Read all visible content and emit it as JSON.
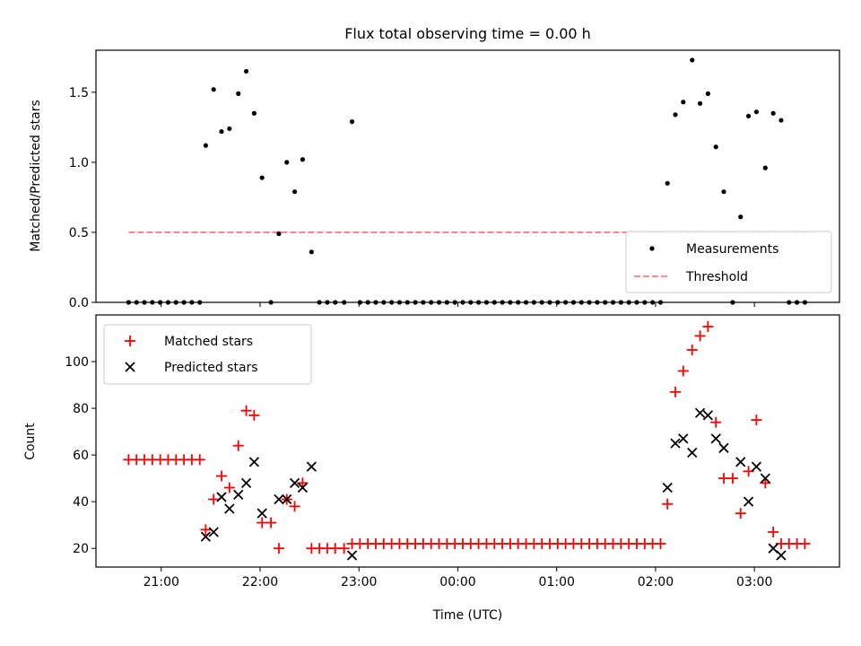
{
  "chart_data": [
    {
      "type": "scatter",
      "title": "Flux total observing time = 0.00 h",
      "xlabel": "",
      "ylabel": "Matched/Predicted stars",
      "ylim": [
        0,
        1.8
      ],
      "yticks": [
        0.0,
        0.5,
        1.0,
        1.5
      ],
      "ytick_labels": [
        "0.0",
        "0.5",
        "1.0",
        "1.5"
      ],
      "xrange_hours": [
        20.34,
        27.86
      ],
      "xticks_hours": [
        21,
        22,
        23,
        24,
        25,
        26,
        27
      ],
      "grid": false,
      "legend_position": "lower-right",
      "threshold": {
        "name": "Threshold",
        "value": 0.5,
        "x_from": 20.67,
        "x_to": 27.67,
        "color": "#ff7f7f"
      },
      "series": [
        {
          "name": "Measurements",
          "marker": "dot",
          "color": "#000000",
          "points": [
            [
              20.67,
              0
            ],
            [
              20.75,
              0
            ],
            [
              20.83,
              0
            ],
            [
              20.91,
              0
            ],
            [
              20.99,
              0
            ],
            [
              21.07,
              0
            ],
            [
              21.15,
              0
            ],
            [
              21.23,
              0
            ],
            [
              21.31,
              0
            ],
            [
              21.39,
              0
            ],
            [
              21.45,
              1.12
            ],
            [
              21.53,
              1.52
            ],
            [
              21.61,
              1.22
            ],
            [
              21.69,
              1.24
            ],
            [
              21.78,
              1.49
            ],
            [
              21.86,
              1.65
            ],
            [
              21.94,
              1.35
            ],
            [
              22.02,
              0.89
            ],
            [
              22.11,
              0
            ],
            [
              22.19,
              0.49
            ],
            [
              22.27,
              1.0
            ],
            [
              22.35,
              0.79
            ],
            [
              22.43,
              1.02
            ],
            [
              22.52,
              0.36
            ],
            [
              22.6,
              0
            ],
            [
              22.68,
              0
            ],
            [
              22.76,
              0
            ],
            [
              22.85,
              0
            ],
            [
              22.93,
              1.29
            ],
            [
              23.01,
              0
            ],
            [
              23.09,
              0
            ],
            [
              23.17,
              0
            ],
            [
              23.25,
              0
            ],
            [
              23.33,
              0
            ],
            [
              23.41,
              0
            ],
            [
              23.49,
              0
            ],
            [
              23.57,
              0
            ],
            [
              23.65,
              0
            ],
            [
              23.73,
              0
            ],
            [
              23.81,
              0
            ],
            [
              23.89,
              0
            ],
            [
              23.97,
              0
            ],
            [
              24.05,
              0
            ],
            [
              24.13,
              0
            ],
            [
              24.21,
              0
            ],
            [
              24.29,
              0
            ],
            [
              24.37,
              0
            ],
            [
              24.45,
              0
            ],
            [
              24.53,
              0
            ],
            [
              24.61,
              0
            ],
            [
              24.69,
              0
            ],
            [
              24.77,
              0
            ],
            [
              24.85,
              0
            ],
            [
              24.93,
              0
            ],
            [
              25.01,
              0
            ],
            [
              25.09,
              0
            ],
            [
              25.17,
              0
            ],
            [
              25.25,
              0
            ],
            [
              25.33,
              0
            ],
            [
              25.41,
              0
            ],
            [
              25.49,
              0
            ],
            [
              25.57,
              0
            ],
            [
              25.65,
              0
            ],
            [
              25.73,
              0
            ],
            [
              25.81,
              0
            ],
            [
              25.89,
              0
            ],
            [
              25.97,
              0
            ],
            [
              26.05,
              0
            ],
            [
              26.12,
              0.85
            ],
            [
              26.2,
              1.34
            ],
            [
              26.28,
              1.43
            ],
            [
              26.37,
              1.73
            ],
            [
              26.45,
              1.42
            ],
            [
              26.53,
              1.49
            ],
            [
              26.61,
              1.11
            ],
            [
              26.69,
              0.79
            ],
            [
              26.78,
              0
            ],
            [
              26.86,
              0.61
            ],
            [
              26.94,
              1.33
            ],
            [
              27.02,
              1.36
            ],
            [
              27.11,
              0.96
            ],
            [
              27.19,
              1.35
            ],
            [
              27.27,
              1.3
            ],
            [
              27.35,
              0
            ],
            [
              27.43,
              0
            ],
            [
              27.51,
              0
            ]
          ]
        }
      ]
    },
    {
      "type": "scatter",
      "title": "",
      "xlabel": "Time (UTC)",
      "ylabel": "Count",
      "ylim": [
        12,
        120
      ],
      "yticks": [
        20,
        40,
        60,
        80,
        100
      ],
      "ytick_labels": [
        "20",
        "40",
        "60",
        "80",
        "100"
      ],
      "xrange_hours": [
        20.34,
        27.86
      ],
      "xticks_hours": [
        21,
        22,
        23,
        24,
        25,
        26,
        27
      ],
      "xtick_labels": [
        "21:00",
        "22:00",
        "23:00",
        "00:00",
        "01:00",
        "02:00",
        "03:00"
      ],
      "grid": false,
      "legend_position": "upper-left",
      "series": [
        {
          "name": "Matched stars",
          "marker": "plus",
          "color": "#ff0000",
          "points": [
            [
              20.67,
              58
            ],
            [
              20.75,
              58
            ],
            [
              20.83,
              58
            ],
            [
              20.91,
              58
            ],
            [
              20.99,
              58
            ],
            [
              21.07,
              58
            ],
            [
              21.15,
              58
            ],
            [
              21.23,
              58
            ],
            [
              21.31,
              58
            ],
            [
              21.39,
              58
            ],
            [
              21.45,
              28
            ],
            [
              21.53,
              41
            ],
            [
              21.61,
              51
            ],
            [
              21.69,
              46
            ],
            [
              21.78,
              64
            ],
            [
              21.86,
              79
            ],
            [
              21.94,
              77
            ],
            [
              22.02,
              31
            ],
            [
              22.11,
              31
            ],
            [
              22.19,
              20
            ],
            [
              22.27,
              41
            ],
            [
              22.35,
              38
            ],
            [
              22.43,
              48
            ],
            [
              22.52,
              20
            ],
            [
              22.6,
              20
            ],
            [
              22.68,
              20
            ],
            [
              22.76,
              20
            ],
            [
              22.85,
              20
            ],
            [
              22.93,
              22
            ],
            [
              23.01,
              22
            ],
            [
              23.09,
              22
            ],
            [
              23.17,
              22
            ],
            [
              23.25,
              22
            ],
            [
              23.33,
              22
            ],
            [
              23.41,
              22
            ],
            [
              23.49,
              22
            ],
            [
              23.57,
              22
            ],
            [
              23.65,
              22
            ],
            [
              23.73,
              22
            ],
            [
              23.81,
              22
            ],
            [
              23.89,
              22
            ],
            [
              23.97,
              22
            ],
            [
              24.05,
              22
            ],
            [
              24.13,
              22
            ],
            [
              24.21,
              22
            ],
            [
              24.29,
              22
            ],
            [
              24.37,
              22
            ],
            [
              24.45,
              22
            ],
            [
              24.53,
              22
            ],
            [
              24.61,
              22
            ],
            [
              24.69,
              22
            ],
            [
              24.77,
              22
            ],
            [
              24.85,
              22
            ],
            [
              24.93,
              22
            ],
            [
              25.01,
              22
            ],
            [
              25.09,
              22
            ],
            [
              25.17,
              22
            ],
            [
              25.25,
              22
            ],
            [
              25.33,
              22
            ],
            [
              25.41,
              22
            ],
            [
              25.49,
              22
            ],
            [
              25.57,
              22
            ],
            [
              25.65,
              22
            ],
            [
              25.73,
              22
            ],
            [
              25.81,
              22
            ],
            [
              25.89,
              22
            ],
            [
              25.97,
              22
            ],
            [
              26.05,
              22
            ],
            [
              26.12,
              39
            ],
            [
              26.2,
              87
            ],
            [
              26.28,
              96
            ],
            [
              26.37,
              105
            ],
            [
              26.45,
              111
            ],
            [
              26.53,
              115
            ],
            [
              26.61,
              74
            ],
            [
              26.69,
              50
            ],
            [
              26.78,
              50
            ],
            [
              26.86,
              35
            ],
            [
              26.94,
              53
            ],
            [
              27.02,
              75
            ],
            [
              27.11,
              48
            ],
            [
              27.19,
              27
            ],
            [
              27.27,
              22
            ],
            [
              27.35,
              22
            ],
            [
              27.43,
              22
            ],
            [
              27.51,
              22
            ]
          ]
        },
        {
          "name": "Predicted stars",
          "marker": "x",
          "color": "#000000",
          "points": [
            [
              21.45,
              25
            ],
            [
              21.53,
              27
            ],
            [
              21.61,
              42
            ],
            [
              21.69,
              37
            ],
            [
              21.78,
              43
            ],
            [
              21.86,
              48
            ],
            [
              21.94,
              57
            ],
            [
              22.02,
              35
            ],
            [
              22.19,
              41
            ],
            [
              22.27,
              41
            ],
            [
              22.35,
              48
            ],
            [
              22.43,
              46
            ],
            [
              22.52,
              55
            ],
            [
              22.93,
              17
            ],
            [
              26.12,
              46
            ],
            [
              26.2,
              65
            ],
            [
              26.28,
              67
            ],
            [
              26.37,
              61
            ],
            [
              26.45,
              78
            ],
            [
              26.53,
              77
            ],
            [
              26.61,
              67
            ],
            [
              26.69,
              63
            ],
            [
              26.86,
              57
            ],
            [
              26.94,
              40
            ],
            [
              27.02,
              55
            ],
            [
              27.11,
              50
            ],
            [
              27.19,
              20
            ],
            [
              27.27,
              17
            ]
          ]
        }
      ]
    }
  ]
}
